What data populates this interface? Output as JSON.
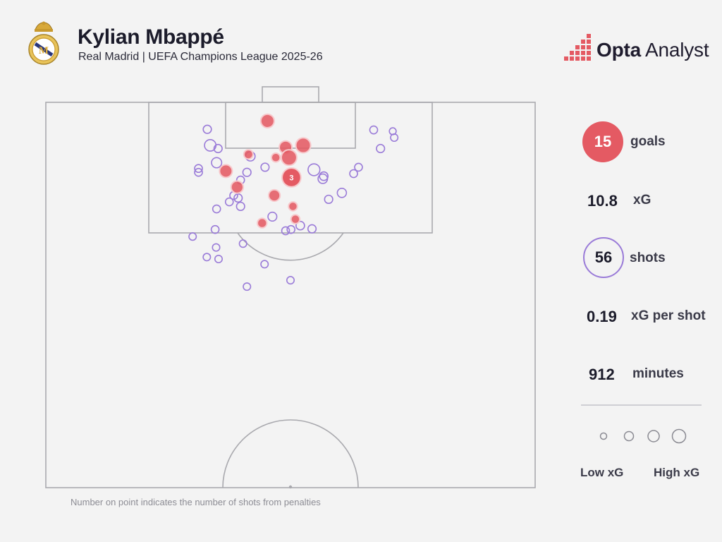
{
  "header": {
    "title": "Kylian Mbappé",
    "subtitle": "Real Madrid | UEFA Champions League 2025-26"
  },
  "brand": {
    "name_bold": "Opta",
    "name_light": " Analyst"
  },
  "stats": {
    "goals_value": "15",
    "goals_label": "goals",
    "xg_value": "10.8",
    "xg_label": "xG",
    "shots_value": "56",
    "shots_label": "shots",
    "xg_per_shot_value": "0.19",
    "xg_per_shot_label": "xG per shot",
    "minutes_value": "912",
    "minutes_label": "minutes"
  },
  "legend": {
    "low_label": "Low xG",
    "high_label": "High xG"
  },
  "footnote": "Number on point indicates the number of shots from penalties",
  "colors": {
    "goal": "#e45a63",
    "shot": "#9a7bd8",
    "pitch_line": "#a9a9ae",
    "background": "#f3f3f3"
  },
  "chart_data": {
    "type": "scatter",
    "x_axis": "pitch width (0 = left touchline, 100 = right touchline)",
    "y_axis": "distance from goal line in metres",
    "size_encodes": "xG",
    "goals": [
      {
        "x": 45.3,
        "y": 2.9,
        "xg": 0.3
      },
      {
        "x": 49.0,
        "y": 7.0,
        "xg": 0.25
      },
      {
        "x": 52.6,
        "y": 6.7,
        "xg": 0.4
      },
      {
        "x": 41.4,
        "y": 8.1,
        "xg": 0.08
      },
      {
        "x": 47.0,
        "y": 8.6,
        "xg": 0.07
      },
      {
        "x": 49.7,
        "y": 8.6,
        "xg": 0.45
      },
      {
        "x": 36.8,
        "y": 10.7,
        "xg": 0.25
      },
      {
        "x": 50.2,
        "y": 11.7,
        "xg": 0.76,
        "penalties": "3"
      },
      {
        "x": 39.1,
        "y": 13.2,
        "xg": 0.22
      },
      {
        "x": 46.7,
        "y": 14.5,
        "xg": 0.18
      },
      {
        "x": 50.5,
        "y": 16.2,
        "xg": 0.07
      },
      {
        "x": 51.0,
        "y": 18.2,
        "xg": 0.07
      },
      {
        "x": 44.2,
        "y": 18.8,
        "xg": 0.09
      }
    ],
    "shots": [
      {
        "x": 33.0,
        "y": 4.2,
        "xg": 0.05
      },
      {
        "x": 33.6,
        "y": 6.7,
        "xg": 0.18
      },
      {
        "x": 35.2,
        "y": 7.2,
        "xg": 0.05
      },
      {
        "x": 41.8,
        "y": 8.4,
        "xg": 0.09
      },
      {
        "x": 34.9,
        "y": 9.4,
        "xg": 0.12
      },
      {
        "x": 44.8,
        "y": 10.1,
        "xg": 0.05
      },
      {
        "x": 31.2,
        "y": 10.3,
        "xg": 0.04
      },
      {
        "x": 31.2,
        "y": 10.9,
        "xg": 0.04
      },
      {
        "x": 41.1,
        "y": 10.9,
        "xg": 0.05
      },
      {
        "x": 54.8,
        "y": 10.5,
        "xg": 0.2
      },
      {
        "x": 56.8,
        "y": 11.5,
        "xg": 0.06
      },
      {
        "x": 56.6,
        "y": 11.9,
        "xg": 0.09
      },
      {
        "x": 63.9,
        "y": 10.1,
        "xg": 0.04
      },
      {
        "x": 62.9,
        "y": 11.1,
        "xg": 0.04
      },
      {
        "x": 39.8,
        "y": 12.1,
        "xg": 0.04
      },
      {
        "x": 38.4,
        "y": 14.5,
        "xg": 0.04
      },
      {
        "x": 39.3,
        "y": 14.9,
        "xg": 0.05
      },
      {
        "x": 60.5,
        "y": 14.1,
        "xg": 0.08
      },
      {
        "x": 57.8,
        "y": 15.1,
        "xg": 0.05
      },
      {
        "x": 37.5,
        "y": 15.5,
        "xg": 0.04
      },
      {
        "x": 39.8,
        "y": 16.2,
        "xg": 0.05
      },
      {
        "x": 34.9,
        "y": 16.6,
        "xg": 0.04
      },
      {
        "x": 46.3,
        "y": 17.8,
        "xg": 0.07
      },
      {
        "x": 52.0,
        "y": 19.2,
        "xg": 0.06
      },
      {
        "x": 34.6,
        "y": 19.8,
        "xg": 0.04
      },
      {
        "x": 50.1,
        "y": 19.8,
        "xg": 0.04
      },
      {
        "x": 49.0,
        "y": 20.0,
        "xg": 0.04
      },
      {
        "x": 54.4,
        "y": 19.7,
        "xg": 0.05
      },
      {
        "x": 30.0,
        "y": 20.9,
        "xg": 0.03
      },
      {
        "x": 40.3,
        "y": 22.0,
        "xg": 0.03
      },
      {
        "x": 34.8,
        "y": 22.6,
        "xg": 0.03
      },
      {
        "x": 32.9,
        "y": 24.1,
        "xg": 0.03
      },
      {
        "x": 35.3,
        "y": 24.4,
        "xg": 0.03
      },
      {
        "x": 44.7,
        "y": 25.2,
        "xg": 0.03
      },
      {
        "x": 50.0,
        "y": 27.7,
        "xg": 0.03
      },
      {
        "x": 41.1,
        "y": 28.7,
        "xg": 0.03
      },
      {
        "x": 67.0,
        "y": 4.3,
        "xg": 0.04
      },
      {
        "x": 70.9,
        "y": 4.5,
        "xg": 0.02
      },
      {
        "x": 71.2,
        "y": 5.5,
        "xg": 0.03
      },
      {
        "x": 68.4,
        "y": 7.2,
        "xg": 0.05
      }
    ]
  }
}
